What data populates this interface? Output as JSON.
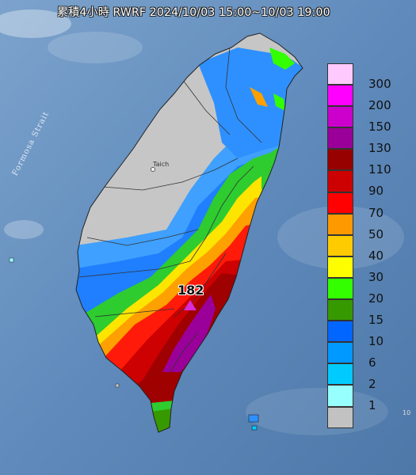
{
  "title": "累積4小時 RWRF 2024/10/03 15:00~10/03 19:00",
  "map": {
    "strait_label": "Formosa Strait",
    "city_label": "Taich",
    "max_value_label": "182",
    "edge_number": "10"
  },
  "legend": [
    {
      "label": "300",
      "color": "#fecafe"
    },
    {
      "label": "200",
      "color": "#fe01fe"
    },
    {
      "label": "150",
      "color": "#cb00cc"
    },
    {
      "label": "130",
      "color": "#9a0099"
    },
    {
      "label": "110",
      "color": "#970100"
    },
    {
      "label": "90",
      "color": "#cd0101"
    },
    {
      "label": "70",
      "color": "#ff0101"
    },
    {
      "label": "50",
      "color": "#fe9a00"
    },
    {
      "label": "40",
      "color": "#fecb00"
    },
    {
      "label": "30",
      "color": "#fefe01"
    },
    {
      "label": "20",
      "color": "#33ff00"
    },
    {
      "label": "15",
      "color": "#379900"
    },
    {
      "label": "10",
      "color": "#0066ff"
    },
    {
      "label": "6",
      "color": "#0099ff"
    },
    {
      "label": "2",
      "color": "#01cbfe"
    },
    {
      "label": "1",
      "color": "#98ffff"
    },
    {
      "label": "",
      "color": "#c2c2c2"
    }
  ]
}
